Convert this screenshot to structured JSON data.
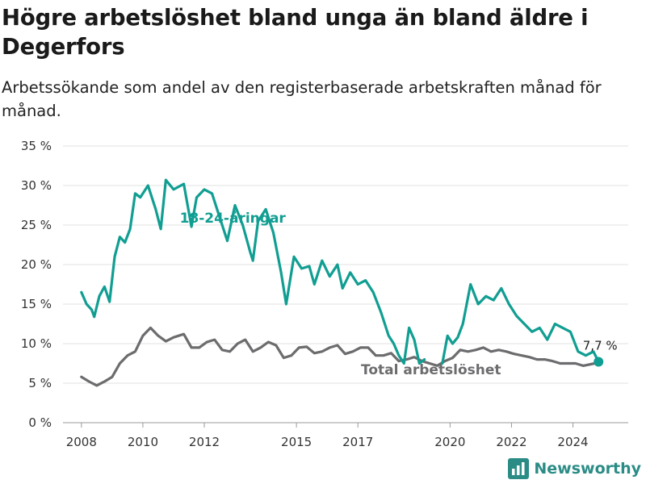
{
  "title": "Högre arbetslöshet bland unga än bland äldre i Degerfors",
  "subtitle": "Arbetssökande som andel av den registerbaserade arbetskraften månad för månad.",
  "brand": {
    "name": "Newsworthy",
    "logo_icon": "bar-chart-logo-icon"
  },
  "chart_data": {
    "type": "line",
    "x_ticks": [
      "2008",
      "2010",
      "2012",
      "2015",
      "2017",
      "2020",
      "2022",
      "2024"
    ],
    "y_ticks": [
      "0 %",
      "5 %",
      "10 %",
      "15 %",
      "20 %",
      "25 %",
      "30 %",
      "35 %"
    ],
    "ylim": [
      0,
      35
    ],
    "grid": true,
    "end_label": "7,7 %",
    "series": [
      {
        "name": "18-24-åringar",
        "color": "#119e92",
        "points": [
          [
            "2008-01",
            16.5
          ],
          [
            "2008-03",
            15.0
          ],
          [
            "2008-05",
            14.3
          ],
          [
            "2008-06",
            13.4
          ],
          [
            "2008-08",
            16.0
          ],
          [
            "2008-10",
            17.2
          ],
          [
            "2008-12",
            15.3
          ],
          [
            "2009-02",
            21.0
          ],
          [
            "2009-04",
            23.5
          ],
          [
            "2009-06",
            22.8
          ],
          [
            "2009-08",
            24.5
          ],
          [
            "2009-10",
            29.0
          ],
          [
            "2009-12",
            28.5
          ],
          [
            "2010-03",
            30.0
          ],
          [
            "2010-06",
            27.0
          ],
          [
            "2010-08",
            24.5
          ],
          [
            "2010-10",
            30.7
          ],
          [
            "2011-01",
            29.5
          ],
          [
            "2011-05",
            30.2
          ],
          [
            "2011-08",
            24.8
          ],
          [
            "2011-10",
            28.5
          ],
          [
            "2012-01",
            29.5
          ],
          [
            "2012-04",
            29.0
          ],
          [
            "2012-07",
            26.0
          ],
          [
            "2012-10",
            23.0
          ],
          [
            "2013-01",
            27.5
          ],
          [
            "2013-04",
            25.0
          ],
          [
            "2013-07",
            21.5
          ],
          [
            "2013-08",
            20.5
          ],
          [
            "2013-10",
            25.5
          ],
          [
            "2014-01",
            27.0
          ],
          [
            "2014-04",
            24.0
          ],
          [
            "2014-07",
            19.0
          ],
          [
            "2014-09",
            15.0
          ],
          [
            "2014-12",
            21.0
          ],
          [
            "2015-03",
            19.5
          ],
          [
            "2015-06",
            19.8
          ],
          [
            "2015-08",
            17.5
          ],
          [
            "2015-11",
            20.5
          ],
          [
            "2016-02",
            18.5
          ],
          [
            "2016-05",
            20.0
          ],
          [
            "2016-07",
            17.0
          ],
          [
            "2016-10",
            19.0
          ],
          [
            "2017-01",
            17.5
          ],
          [
            "2017-04",
            18.0
          ],
          [
            "2017-07",
            16.5
          ],
          [
            "2017-10",
            14.0
          ],
          [
            "2018-01",
            11.0
          ],
          [
            "2018-03",
            10.0
          ],
          [
            "2018-05",
            8.5
          ],
          [
            "2018-07",
            7.5
          ],
          [
            "2018-09",
            12.0
          ],
          [
            "2018-11",
            10.5
          ],
          [
            "2019-01",
            7.5
          ],
          [
            "2019-03",
            8.0
          ],
          [
            null,
            null
          ],
          [
            "2019-10",
            7.5
          ],
          [
            "2019-12",
            11.0
          ],
          [
            "2020-02",
            10.0
          ],
          [
            "2020-04",
            10.8
          ],
          [
            "2020-06",
            12.5
          ],
          [
            "2020-09",
            17.5
          ],
          [
            "2020-12",
            15.0
          ],
          [
            "2021-03",
            16.0
          ],
          [
            "2021-06",
            15.5
          ],
          [
            "2021-09",
            17.0
          ],
          [
            "2021-12",
            15.0
          ],
          [
            "2022-03",
            13.5
          ],
          [
            "2022-06",
            12.5
          ],
          [
            "2022-09",
            11.5
          ],
          [
            "2022-12",
            12.0
          ],
          [
            "2023-03",
            10.5
          ],
          [
            "2023-06",
            12.5
          ],
          [
            "2023-09",
            12.0
          ],
          [
            "2023-12",
            11.5
          ],
          [
            "2024-03",
            9.0
          ],
          [
            "2024-06",
            8.5
          ],
          [
            "2024-09",
            9.0
          ],
          [
            "2024-11",
            7.7
          ]
        ]
      },
      {
        "name": "Total arbetslöshet",
        "color": "#6c6c6f",
        "points": [
          [
            "2008-01",
            5.8
          ],
          [
            "2008-04",
            5.2
          ],
          [
            "2008-07",
            4.7
          ],
          [
            "2008-10",
            5.2
          ],
          [
            "2009-01",
            5.8
          ],
          [
            "2009-04",
            7.5
          ],
          [
            "2009-07",
            8.5
          ],
          [
            "2009-10",
            9.0
          ],
          [
            "2010-01",
            11.0
          ],
          [
            "2010-04",
            12.0
          ],
          [
            "2010-07",
            11.0
          ],
          [
            "2010-10",
            10.3
          ],
          [
            "2011-01",
            10.8
          ],
          [
            "2011-05",
            11.2
          ],
          [
            "2011-08",
            9.5
          ],
          [
            "2011-11",
            9.5
          ],
          [
            "2012-02",
            10.2
          ],
          [
            "2012-05",
            10.5
          ],
          [
            "2012-08",
            9.2
          ],
          [
            "2012-11",
            9.0
          ],
          [
            "2013-02",
            10.0
          ],
          [
            "2013-05",
            10.5
          ],
          [
            "2013-08",
            9.0
          ],
          [
            "2013-11",
            9.5
          ],
          [
            "2014-02",
            10.2
          ],
          [
            "2014-05",
            9.8
          ],
          [
            "2014-08",
            8.2
          ],
          [
            "2014-11",
            8.5
          ],
          [
            "2015-02",
            9.5
          ],
          [
            "2015-05",
            9.6
          ],
          [
            "2015-08",
            8.8
          ],
          [
            "2015-11",
            9.0
          ],
          [
            "2016-02",
            9.5
          ],
          [
            "2016-05",
            9.8
          ],
          [
            "2016-08",
            8.7
          ],
          [
            "2016-11",
            9.0
          ],
          [
            "2017-02",
            9.5
          ],
          [
            "2017-05",
            9.5
          ],
          [
            "2017-08",
            8.5
          ],
          [
            "2017-11",
            8.5
          ],
          [
            "2018-02",
            8.8
          ],
          [
            "2018-05",
            7.8
          ],
          [
            "2018-08",
            8.0
          ],
          [
            "2018-11",
            8.3
          ],
          [
            "2019-02",
            7.8
          ],
          [
            "2019-05",
            7.5
          ],
          [
            "2019-08",
            7.2
          ],
          [
            "2019-11",
            7.8
          ],
          [
            "2020-02",
            8.2
          ],
          [
            "2020-05",
            9.2
          ],
          [
            "2020-08",
            9.0
          ],
          [
            "2020-11",
            9.2
          ],
          [
            "2021-02",
            9.5
          ],
          [
            "2021-05",
            9.0
          ],
          [
            "2021-08",
            9.2
          ],
          [
            "2021-11",
            9.0
          ],
          [
            "2022-02",
            8.7
          ],
          [
            "2022-05",
            8.5
          ],
          [
            "2022-08",
            8.3
          ],
          [
            "2022-11",
            8.0
          ],
          [
            "2023-02",
            8.0
          ],
          [
            "2023-05",
            7.8
          ],
          [
            "2023-08",
            7.5
          ],
          [
            "2023-11",
            7.5
          ],
          [
            "2024-02",
            7.5
          ],
          [
            "2024-05",
            7.2
          ],
          [
            "2024-08",
            7.4
          ],
          [
            "2024-11",
            7.6
          ]
        ]
      }
    ]
  }
}
